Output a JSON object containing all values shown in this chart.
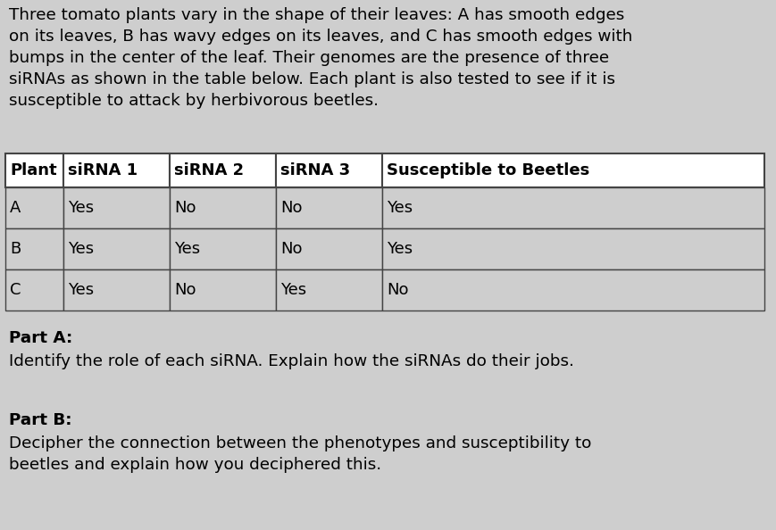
{
  "background_color": "#cecece",
  "intro_text": "Three tomato plants vary in the shape of their leaves: A has smooth edges\non its leaves, B has wavy edges on its leaves, and C has smooth edges with\nbumps in the center of the leaf. Their genomes are the presence of three\nsiRNAs as shown in the table below. Each plant is also tested to see if it is\nsusceptible to attack by herbivorous beetles.",
  "table_headers": [
    "Plant",
    "siRNA 1",
    "siRNA 2",
    "siRNA 3",
    "Susceptible to Beetles"
  ],
  "table_rows": [
    [
      "A",
      "Yes",
      "No",
      "No",
      "Yes"
    ],
    [
      "B",
      "Yes",
      "Yes",
      "No",
      "Yes"
    ],
    [
      "C",
      "Yes",
      "No",
      "Yes",
      "No"
    ]
  ],
  "part_a_label": "Part A:",
  "part_a_text": "Identify the role of each siRNA. Explain how the siRNAs do their jobs.",
  "part_b_label": "Part B:",
  "part_b_text": "Decipher the connection between the phenotypes and susceptibility to\nbeetles and explain how you deciphered this.",
  "intro_fontsize": 13.2,
  "table_header_fontsize": 13.0,
  "table_cell_fontsize": 13.0,
  "part_label_fontsize": 13.2,
  "part_text_fontsize": 13.2,
  "text_color": "#000000",
  "table_border_color": "#444444",
  "table_row_bg": "#cecece"
}
